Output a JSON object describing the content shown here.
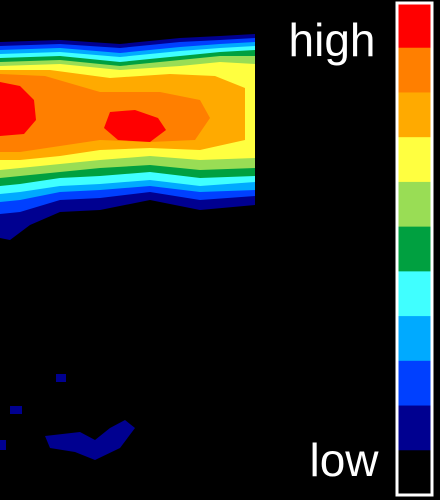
{
  "legend": {
    "high_label": "high",
    "low_label": "low",
    "colors": [
      "#ff0000",
      "#ff7f00",
      "#ffaa00",
      "#ffff40",
      "#99dd55",
      "#00a040",
      "#40ffff",
      "#00aaff",
      "#0040ff",
      "#000090",
      "#000000"
    ]
  }
}
